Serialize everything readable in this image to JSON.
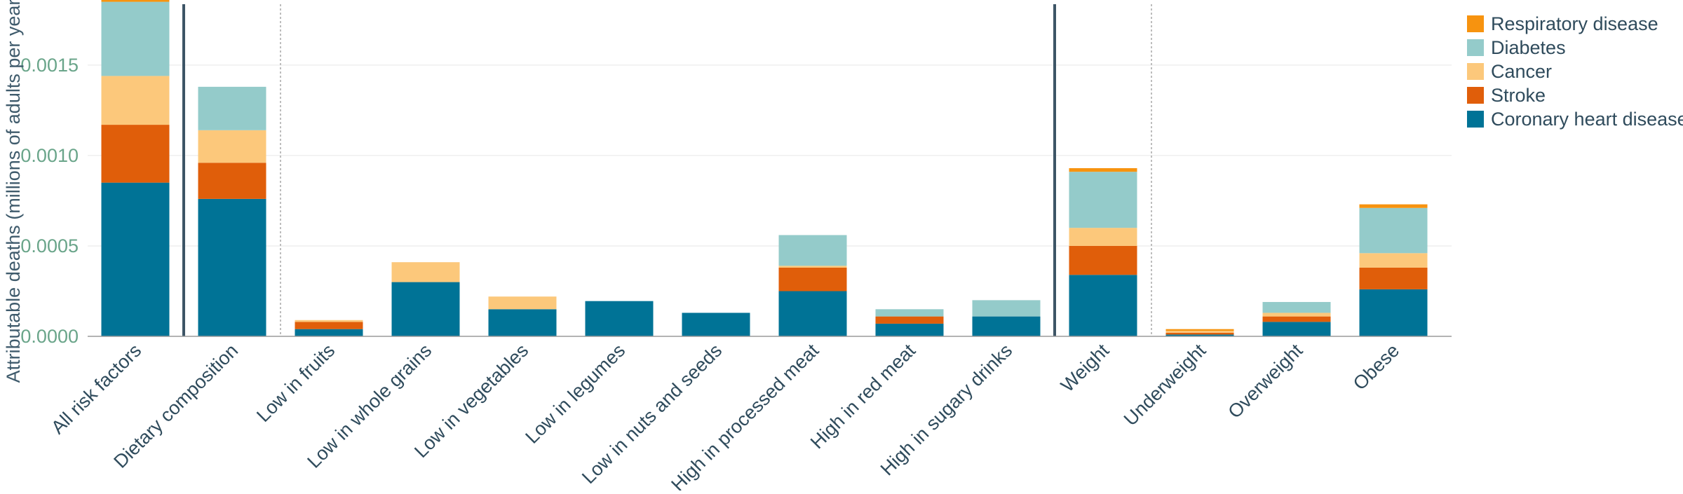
{
  "chart_data": {
    "type": "bar",
    "stacked": true,
    "title": "",
    "xlabel": "",
    "ylabel": "Attributable deaths (millions of adults per year)",
    "ylim": [
      0,
      0.00186
    ],
    "yticks": [
      "0.0000",
      "0.0005",
      "0.0010",
      "0.0015"
    ],
    "ytick_values": [
      0,
      0.0005,
      0.001,
      0.0015
    ],
    "grid": true,
    "legend_position": "top-right",
    "categories": [
      "All risk factors",
      "Dietary composition",
      "Low in fruits",
      "Low in whole grains",
      "Low in vegetables",
      "Low in legumes",
      "Low in nuts and seeds",
      "High in processed meat",
      "High in red meat",
      "High in sugary drinks",
      "Weight",
      "Underweight",
      "Overweight",
      "Obese"
    ],
    "separators": [
      {
        "after_index": 0,
        "style": "solid"
      },
      {
        "after_index": 1,
        "style": "dotted"
      },
      {
        "after_index": 9,
        "style": "solid"
      },
      {
        "after_index": 10,
        "style": "dotted"
      }
    ],
    "series": [
      {
        "name": "Coronary heart disease",
        "color": "#007396",
        "values": [
          0.00085,
          0.00076,
          4e-05,
          0.0003,
          0.00015,
          0.000195,
          0.00013,
          0.00025,
          7e-05,
          0.00011,
          0.00034,
          1e-05,
          8e-05,
          0.00026
        ]
      },
      {
        "name": "Stroke",
        "color": "#e05e0a",
        "values": [
          0.00032,
          0.0002,
          4e-05,
          0,
          0,
          0,
          0,
          0.00013,
          4e-05,
          0,
          0.00016,
          1e-05,
          3e-05,
          0.00012
        ]
      },
      {
        "name": "Cancer",
        "color": "#fcc87b",
        "values": [
          0.00027,
          0.00018,
          1e-05,
          0.00011,
          7e-05,
          0,
          0,
          1e-05,
          0,
          0,
          0.0001,
          1e-05,
          2e-05,
          8e-05
        ]
      },
      {
        "name": "Diabetes",
        "color": "#94cbca",
        "values": [
          0.00041,
          0.00024,
          0,
          0,
          0,
          0,
          0,
          0.00017,
          4e-05,
          9e-05,
          0.00031,
          0,
          6e-05,
          0.00025
        ]
      },
      {
        "name": "Respiratory disease",
        "color": "#f7930f",
        "values": [
          2e-05,
          0,
          0,
          0,
          0,
          0,
          0,
          0,
          0,
          0,
          2e-05,
          1e-05,
          0,
          2e-05
        ]
      }
    ],
    "legend_order": [
      "Respiratory disease",
      "Diabetes",
      "Cancer",
      "Stroke",
      "Coronary heart disease"
    ]
  }
}
